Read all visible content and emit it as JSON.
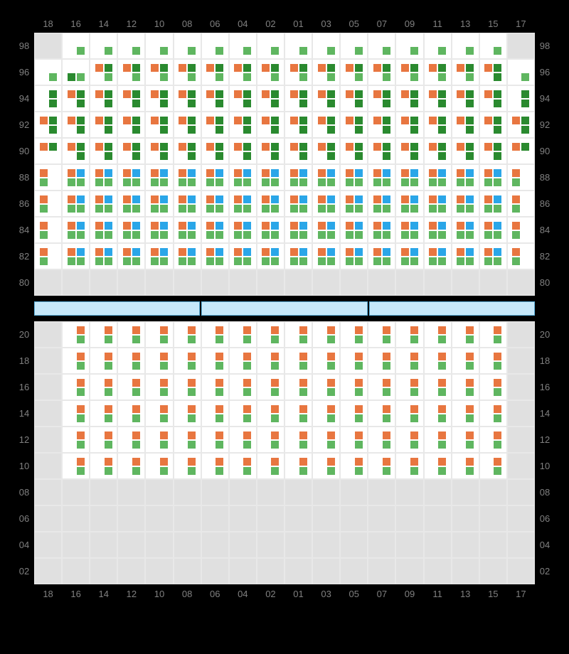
{
  "colors": {
    "green": "#5fb660",
    "darkgreen": "#2a8a2f",
    "orange": "#e87640",
    "blue": "#2aa6e8",
    "cell_empty": "#e0e0e0",
    "cell_filled": "#ffffff",
    "grid_line": "#e8e8e8",
    "label": "#808080",
    "background": "#000000",
    "divider_fill": "#c6e8fa",
    "divider_border": "#5fb3e0"
  },
  "columns": [
    "18",
    "16",
    "14",
    "12",
    "10",
    "08",
    "06",
    "04",
    "02",
    "01",
    "03",
    "05",
    "07",
    "09",
    "11",
    "13",
    "15",
    "17"
  ],
  "top": {
    "rows": [
      "98",
      "96",
      "94",
      "92",
      "90",
      "88",
      "86",
      "84",
      "82",
      "80"
    ],
    "cells": {
      "98": {
        "18": {
          "empty": true
        },
        "17": {
          "empty": true
        },
        "default": {
          "top": [
            null,
            null
          ],
          "bot": [
            null,
            "green"
          ]
        }
      },
      "96": {
        "18": {
          "top": [
            null,
            null
          ],
          "bot": [
            null,
            "green"
          ]
        },
        "16": {
          "top": [
            null,
            null
          ],
          "bot": [
            "darkgreen",
            "green"
          ]
        },
        "17": {
          "top": [
            null,
            null
          ],
          "bot": [
            null,
            "green"
          ]
        },
        "15": {
          "top": [
            "orange",
            "darkgreen"
          ],
          "bot": [
            null,
            "darkgreen"
          ]
        },
        "default": {
          "top": [
            "orange",
            "darkgreen"
          ],
          "bot": [
            null,
            "green"
          ]
        }
      },
      "94": {
        "18": {
          "top": [
            null,
            "darkgreen"
          ],
          "bot": [
            null,
            "darkgreen"
          ]
        },
        "17": {
          "top": [
            null,
            "darkgreen"
          ],
          "bot": [
            null,
            "darkgreen"
          ]
        },
        "default": {
          "top": [
            "orange",
            "darkgreen"
          ],
          "bot": [
            null,
            "darkgreen"
          ]
        }
      },
      "92": {
        "default": {
          "top": [
            "orange",
            "darkgreen"
          ],
          "bot": [
            null,
            "darkgreen"
          ]
        }
      },
      "90": {
        "18": {
          "top": [
            "orange",
            "darkgreen"
          ],
          "bot": [
            null,
            null
          ]
        },
        "17": {
          "top": [
            "orange",
            "darkgreen"
          ],
          "bot": [
            null,
            null
          ]
        },
        "default": {
          "top": [
            "orange",
            "darkgreen"
          ],
          "bot": [
            null,
            "darkgreen"
          ]
        }
      },
      "88": {
        "18": {
          "top": [
            "orange",
            null
          ],
          "bot": [
            "green",
            null
          ]
        },
        "17": {
          "top": [
            "orange",
            null
          ],
          "bot": [
            "green",
            null
          ]
        },
        "default": {
          "top": [
            "orange",
            "blue"
          ],
          "bot": [
            "green",
            "green"
          ]
        }
      },
      "86": {
        "18": {
          "top": [
            "orange",
            null
          ],
          "bot": [
            "green",
            null
          ]
        },
        "17": {
          "top": [
            "orange",
            null
          ],
          "bot": [
            "green",
            null
          ]
        },
        "default": {
          "top": [
            "orange",
            "blue"
          ],
          "bot": [
            "green",
            "green"
          ]
        }
      },
      "84": {
        "18": {
          "top": [
            "orange",
            null
          ],
          "bot": [
            "green",
            null
          ]
        },
        "17": {
          "top": [
            "orange",
            null
          ],
          "bot": [
            "green",
            null
          ]
        },
        "default": {
          "top": [
            "orange",
            "blue"
          ],
          "bot": [
            "green",
            "green"
          ]
        }
      },
      "82": {
        "18": {
          "top": [
            "orange",
            null
          ],
          "bot": [
            "green",
            null
          ]
        },
        "17": {
          "top": [
            "orange",
            null
          ],
          "bot": [
            "green",
            null
          ]
        },
        "default": {
          "top": [
            "orange",
            "blue"
          ],
          "bot": [
            "green",
            "green"
          ]
        }
      },
      "80": {
        "default": {
          "empty": true
        }
      }
    }
  },
  "divider_segments": 3,
  "bottom": {
    "rows": [
      "20",
      "18",
      "16",
      "14",
      "12",
      "10",
      "08",
      "06",
      "04",
      "02"
    ],
    "cells": {
      "20": {
        "18": {
          "empty": true
        },
        "17": {
          "empty": true
        },
        "default": {
          "top": [
            null,
            "orange"
          ],
          "bot": [
            null,
            "green"
          ]
        }
      },
      "18": {
        "18": {
          "empty": true
        },
        "17": {
          "empty": true
        },
        "default": {
          "top": [
            null,
            "orange"
          ],
          "bot": [
            null,
            "green"
          ]
        }
      },
      "16": {
        "18": {
          "empty": true
        },
        "17": {
          "empty": true
        },
        "default": {
          "top": [
            null,
            "orange"
          ],
          "bot": [
            null,
            "green"
          ]
        }
      },
      "14": {
        "18": {
          "empty": true
        },
        "17": {
          "empty": true
        },
        "default": {
          "top": [
            null,
            "orange"
          ],
          "bot": [
            null,
            "green"
          ]
        }
      },
      "12": {
        "18": {
          "empty": true
        },
        "17": {
          "empty": true
        },
        "default": {
          "top": [
            null,
            "orange"
          ],
          "bot": [
            null,
            "green"
          ]
        }
      },
      "10": {
        "18": {
          "empty": true
        },
        "17": {
          "empty": true
        },
        "default": {
          "top": [
            null,
            "orange"
          ],
          "bot": [
            null,
            "green"
          ]
        }
      },
      "08": {
        "default": {
          "empty": true
        }
      },
      "06": {
        "default": {
          "empty": true
        }
      },
      "04": {
        "default": {
          "empty": true
        }
      },
      "02": {
        "default": {
          "empty": true
        }
      }
    }
  }
}
